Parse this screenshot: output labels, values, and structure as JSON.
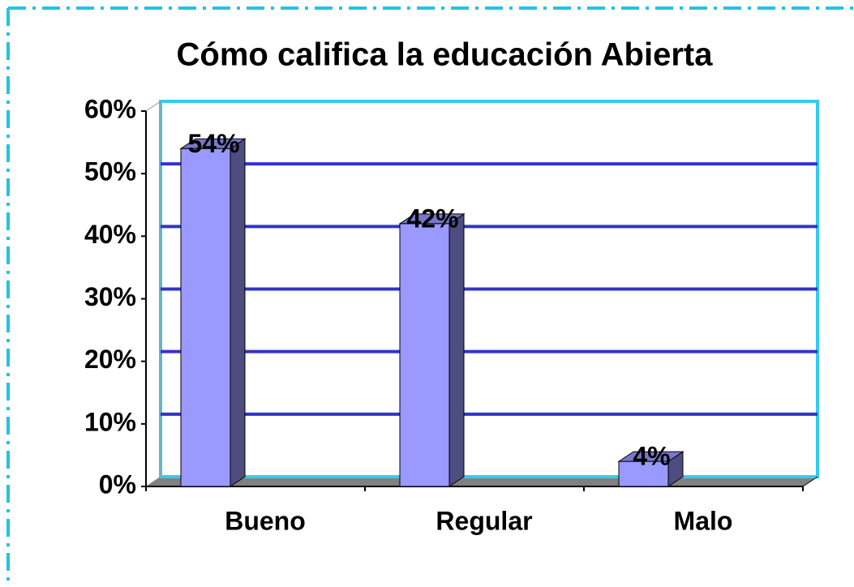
{
  "chart_data": {
    "type": "bar",
    "title": "Cómo califica la educación Abierta",
    "categories": [
      "Bueno",
      "Regular",
      "Malo"
    ],
    "values": [
      54,
      42,
      4
    ],
    "value_labels": [
      "54%",
      "42%",
      "4%"
    ],
    "color": "#9999ff",
    "side_color": "#4d4d80",
    "top_color": "#7777cc",
    "ylim": [
      0,
      60
    ],
    "yticks": [
      {
        "value": 0,
        "label": "0%"
      },
      {
        "value": 10,
        "label": "10%"
      },
      {
        "value": 20,
        "label": "20%"
      },
      {
        "value": 30,
        "label": "30%"
      },
      {
        "value": 40,
        "label": "40%"
      },
      {
        "value": 50,
        "label": "50%"
      },
      {
        "value": 60,
        "label": "60%"
      }
    ],
    "grid": true,
    "grid_color": "#3333cc",
    "wall_color": "#33ccee"
  }
}
